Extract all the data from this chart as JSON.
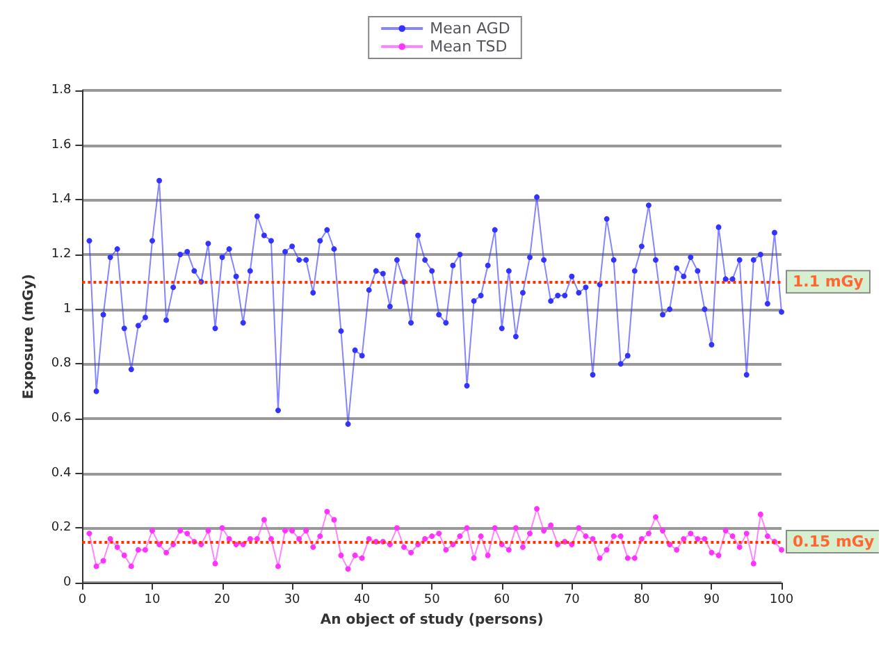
{
  "chart_data": {
    "type": "line",
    "xlabel": "An object of study (persons)",
    "ylabel": "Exposure (mGy)",
    "x": [
      1,
      2,
      3,
      4,
      5,
      6,
      7,
      8,
      9,
      10,
      11,
      12,
      13,
      14,
      15,
      16,
      17,
      18,
      19,
      20,
      21,
      22,
      23,
      24,
      25,
      26,
      27,
      28,
      29,
      30,
      31,
      32,
      33,
      34,
      35,
      36,
      37,
      38,
      39,
      40,
      41,
      42,
      43,
      44,
      45,
      46,
      47,
      48,
      49,
      50,
      51,
      52,
      53,
      54,
      55,
      56,
      57,
      58,
      59,
      60,
      61,
      62,
      63,
      64,
      65,
      66,
      67,
      68,
      69,
      70,
      71,
      72,
      73,
      74,
      75,
      76,
      77,
      78,
      79,
      80,
      81,
      82,
      83,
      84,
      85,
      86,
      87,
      88,
      89,
      90,
      91,
      92,
      93,
      94,
      95,
      96,
      97,
      98,
      99,
      100
    ],
    "series": [
      {
        "name": "Mean AGD",
        "color": "#3333ff",
        "values": [
          1.25,
          0.7,
          0.98,
          1.19,
          1.22,
          0.93,
          0.78,
          0.94,
          0.97,
          1.25,
          1.47,
          0.96,
          1.08,
          1.2,
          1.21,
          1.14,
          1.1,
          1.24,
          0.93,
          1.19,
          1.22,
          1.12,
          0.95,
          1.14,
          1.34,
          1.27,
          1.25,
          0.63,
          1.21,
          1.23,
          1.18,
          1.18,
          1.06,
          1.25,
          1.29,
          1.22,
          0.92,
          0.58,
          0.85,
          0.83,
          1.07,
          1.14,
          1.13,
          1.01,
          1.18,
          1.1,
          0.95,
          1.27,
          1.18,
          1.14,
          0.98,
          0.95,
          1.16,
          1.2,
          0.72,
          1.03,
          1.05,
          1.16,
          1.29,
          0.93,
          1.14,
          0.9,
          1.06,
          1.19,
          1.41,
          1.18,
          1.03,
          1.05,
          1.05,
          1.12,
          1.06,
          1.08,
          0.76,
          1.09,
          1.33,
          1.18,
          0.8,
          0.83,
          1.14,
          1.23,
          1.38,
          1.18,
          0.98,
          1.0,
          1.15,
          1.12,
          1.19,
          1.14,
          1.0,
          0.87,
          1.3,
          1.11,
          1.11,
          1.18,
          0.76,
          1.18,
          1.2,
          1.02,
          1.28,
          0.99
        ]
      },
      {
        "name": "Mean TSD",
        "color": "#ff33ff",
        "values": [
          0.18,
          0.06,
          0.08,
          0.16,
          0.13,
          0.1,
          0.06,
          0.12,
          0.12,
          0.19,
          0.14,
          0.11,
          0.14,
          0.19,
          0.18,
          0.15,
          0.14,
          0.19,
          0.07,
          0.2,
          0.16,
          0.14,
          0.14,
          0.16,
          0.16,
          0.23,
          0.16,
          0.06,
          0.19,
          0.19,
          0.16,
          0.19,
          0.13,
          0.17,
          0.26,
          0.23,
          0.1,
          0.05,
          0.1,
          0.09,
          0.16,
          0.15,
          0.15,
          0.14,
          0.2,
          0.13,
          0.11,
          0.14,
          0.16,
          0.17,
          0.18,
          0.12,
          0.14,
          0.17,
          0.2,
          0.09,
          0.17,
          0.1,
          0.2,
          0.14,
          0.12,
          0.2,
          0.13,
          0.18,
          0.27,
          0.19,
          0.21,
          0.14,
          0.15,
          0.14,
          0.2,
          0.17,
          0.16,
          0.09,
          0.12,
          0.17,
          0.17,
          0.09,
          0.09,
          0.16,
          0.18,
          0.24,
          0.19,
          0.14,
          0.12,
          0.16,
          0.18,
          0.16,
          0.16,
          0.11,
          0.1,
          0.19,
          0.17,
          0.13,
          0.18,
          0.07,
          0.25,
          0.17,
          0.15,
          0.12
        ]
      }
    ],
    "xlim": [
      0,
      100
    ],
    "xticks": [
      0,
      10,
      20,
      30,
      40,
      50,
      60,
      70,
      80,
      90,
      100
    ],
    "ylim": [
      0,
      1.8
    ],
    "yticks": [
      0,
      0.2,
      0.4,
      0.6,
      0.8,
      1,
      1.2,
      1.4,
      1.6,
      1.8
    ],
    "ref_lines": [
      {
        "axis": "y",
        "value": 1.1,
        "label": "1.1 mGy",
        "color": "#ff3300",
        "line_style": "dotted"
      },
      {
        "axis": "y",
        "value": 0.15,
        "label": "0.15 mGy",
        "color": "#ff3300",
        "line_style": "dotted"
      }
    ],
    "grid": "y",
    "legend": "top",
    "marker": "circle",
    "line_style": "solid"
  }
}
